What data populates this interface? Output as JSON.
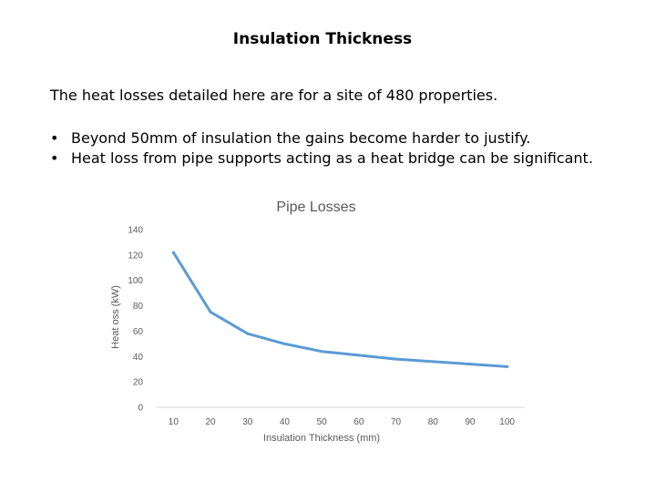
{
  "slide": {
    "title": "Insulation Thickness",
    "intro": "The heat losses detailed here are for a site of 480 properties.",
    "bullets": [
      "Beyond 50mm of insulation the gains become harder to justify.",
      "Heat loss from pipe supports acting as a heat bridge can be significant."
    ],
    "bullet_symbol": "•"
  },
  "chart_data": {
    "type": "line",
    "title": "Pipe Losses",
    "xlabel": "Insulation Thickness (mm)",
    "ylabel": "Heat oss (kW)",
    "x": [
      10,
      20,
      30,
      40,
      50,
      60,
      70,
      80,
      90,
      100
    ],
    "series": [
      {
        "values": [
          122,
          75,
          58,
          50,
          44,
          41,
          38,
          36,
          34,
          32
        ]
      }
    ],
    "ylim": [
      0,
      140
    ],
    "yticks": [
      "0",
      "20",
      "40",
      "60",
      "80",
      "100",
      "120",
      "140"
    ],
    "grid": false,
    "line_color": "#5b9bd5"
  }
}
